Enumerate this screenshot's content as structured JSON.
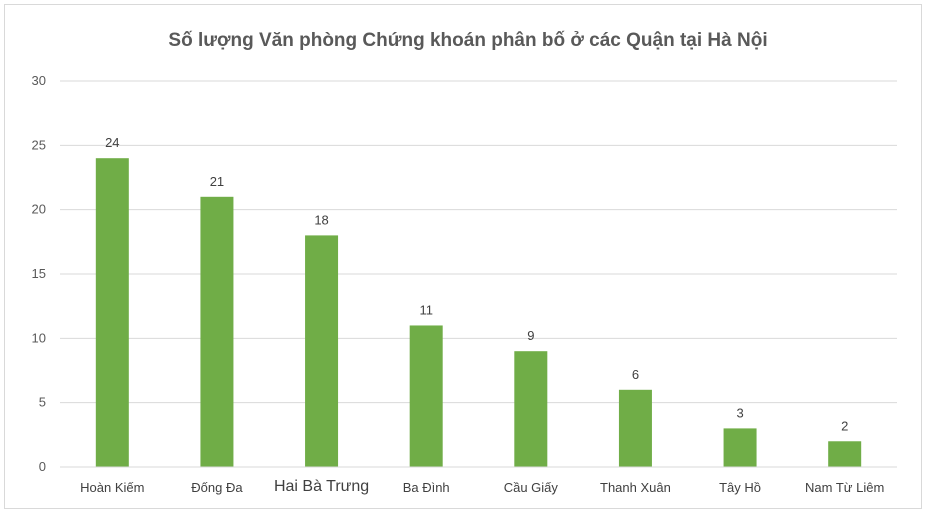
{
  "chart_data": {
    "type": "bar",
    "title": "Số lượng Văn phòng Chứng khoán phân bố ở các Quận tại Hà Nội",
    "categories": [
      "Hoàn Kiếm",
      "Đống Đa",
      "Hai Bà Trưng",
      "Ba Đình",
      "Cầu Giấy",
      "Thanh Xuân",
      "Tây Hồ",
      "Nam Từ Liêm"
    ],
    "values": [
      24,
      21,
      18,
      11,
      9,
      6,
      3,
      2
    ],
    "yticks": [
      0,
      5,
      10,
      15,
      20,
      25,
      30
    ],
    "ylim": [
      0,
      30
    ],
    "grid": true,
    "legend": "none",
    "bar_color": "#70ad47",
    "data_labels": true
  }
}
